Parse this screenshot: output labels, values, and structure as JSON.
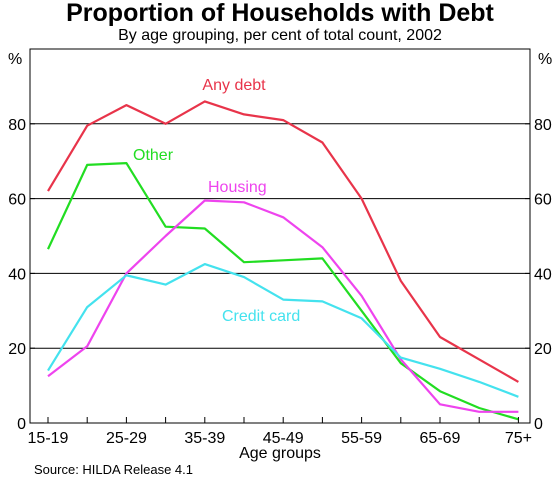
{
  "chart_data": {
    "type": "line",
    "title": "Proportion of Households with Debt",
    "subtitle": "By age grouping, per cent of total count, 2002",
    "xlabel": "Age groups",
    "ylabel_left": "%",
    "ylabel_right": "%",
    "ylim": [
      0,
      100
    ],
    "yticks": [
      0,
      20,
      40,
      60,
      80
    ],
    "grid": true,
    "x_positions": 13,
    "xtick_labels": [
      "15-19",
      "25-29",
      "35-39",
      "45-49",
      "55-59",
      "65-69",
      "75+"
    ],
    "xtick_indices": [
      0,
      2,
      4,
      6,
      8,
      10,
      12
    ],
    "source": "Source: HILDA Release 4.1",
    "series": [
      {
        "name": "Any debt",
        "color": "#e8344a",
        "values": [
          62,
          79.5,
          85,
          80,
          86,
          82.5,
          81,
          75,
          60,
          38,
          23,
          17,
          11
        ]
      },
      {
        "name": "Other",
        "color": "#22dd22",
        "values": [
          46.5,
          69,
          69.5,
          52.5,
          52,
          43,
          43.5,
          44,
          30,
          16,
          8.5,
          4,
          1
        ]
      },
      {
        "name": "Housing",
        "color": "#ee44ee",
        "values": [
          12.5,
          20.5,
          40,
          50,
          59.5,
          59,
          55,
          47,
          34,
          17,
          5,
          3,
          3
        ]
      },
      {
        "name": "Credit card",
        "color": "#44e2ee",
        "values": [
          14,
          31,
          39.5,
          37,
          42.5,
          39,
          33,
          32.5,
          28,
          17.5,
          14.5,
          11,
          7
        ]
      }
    ]
  }
}
